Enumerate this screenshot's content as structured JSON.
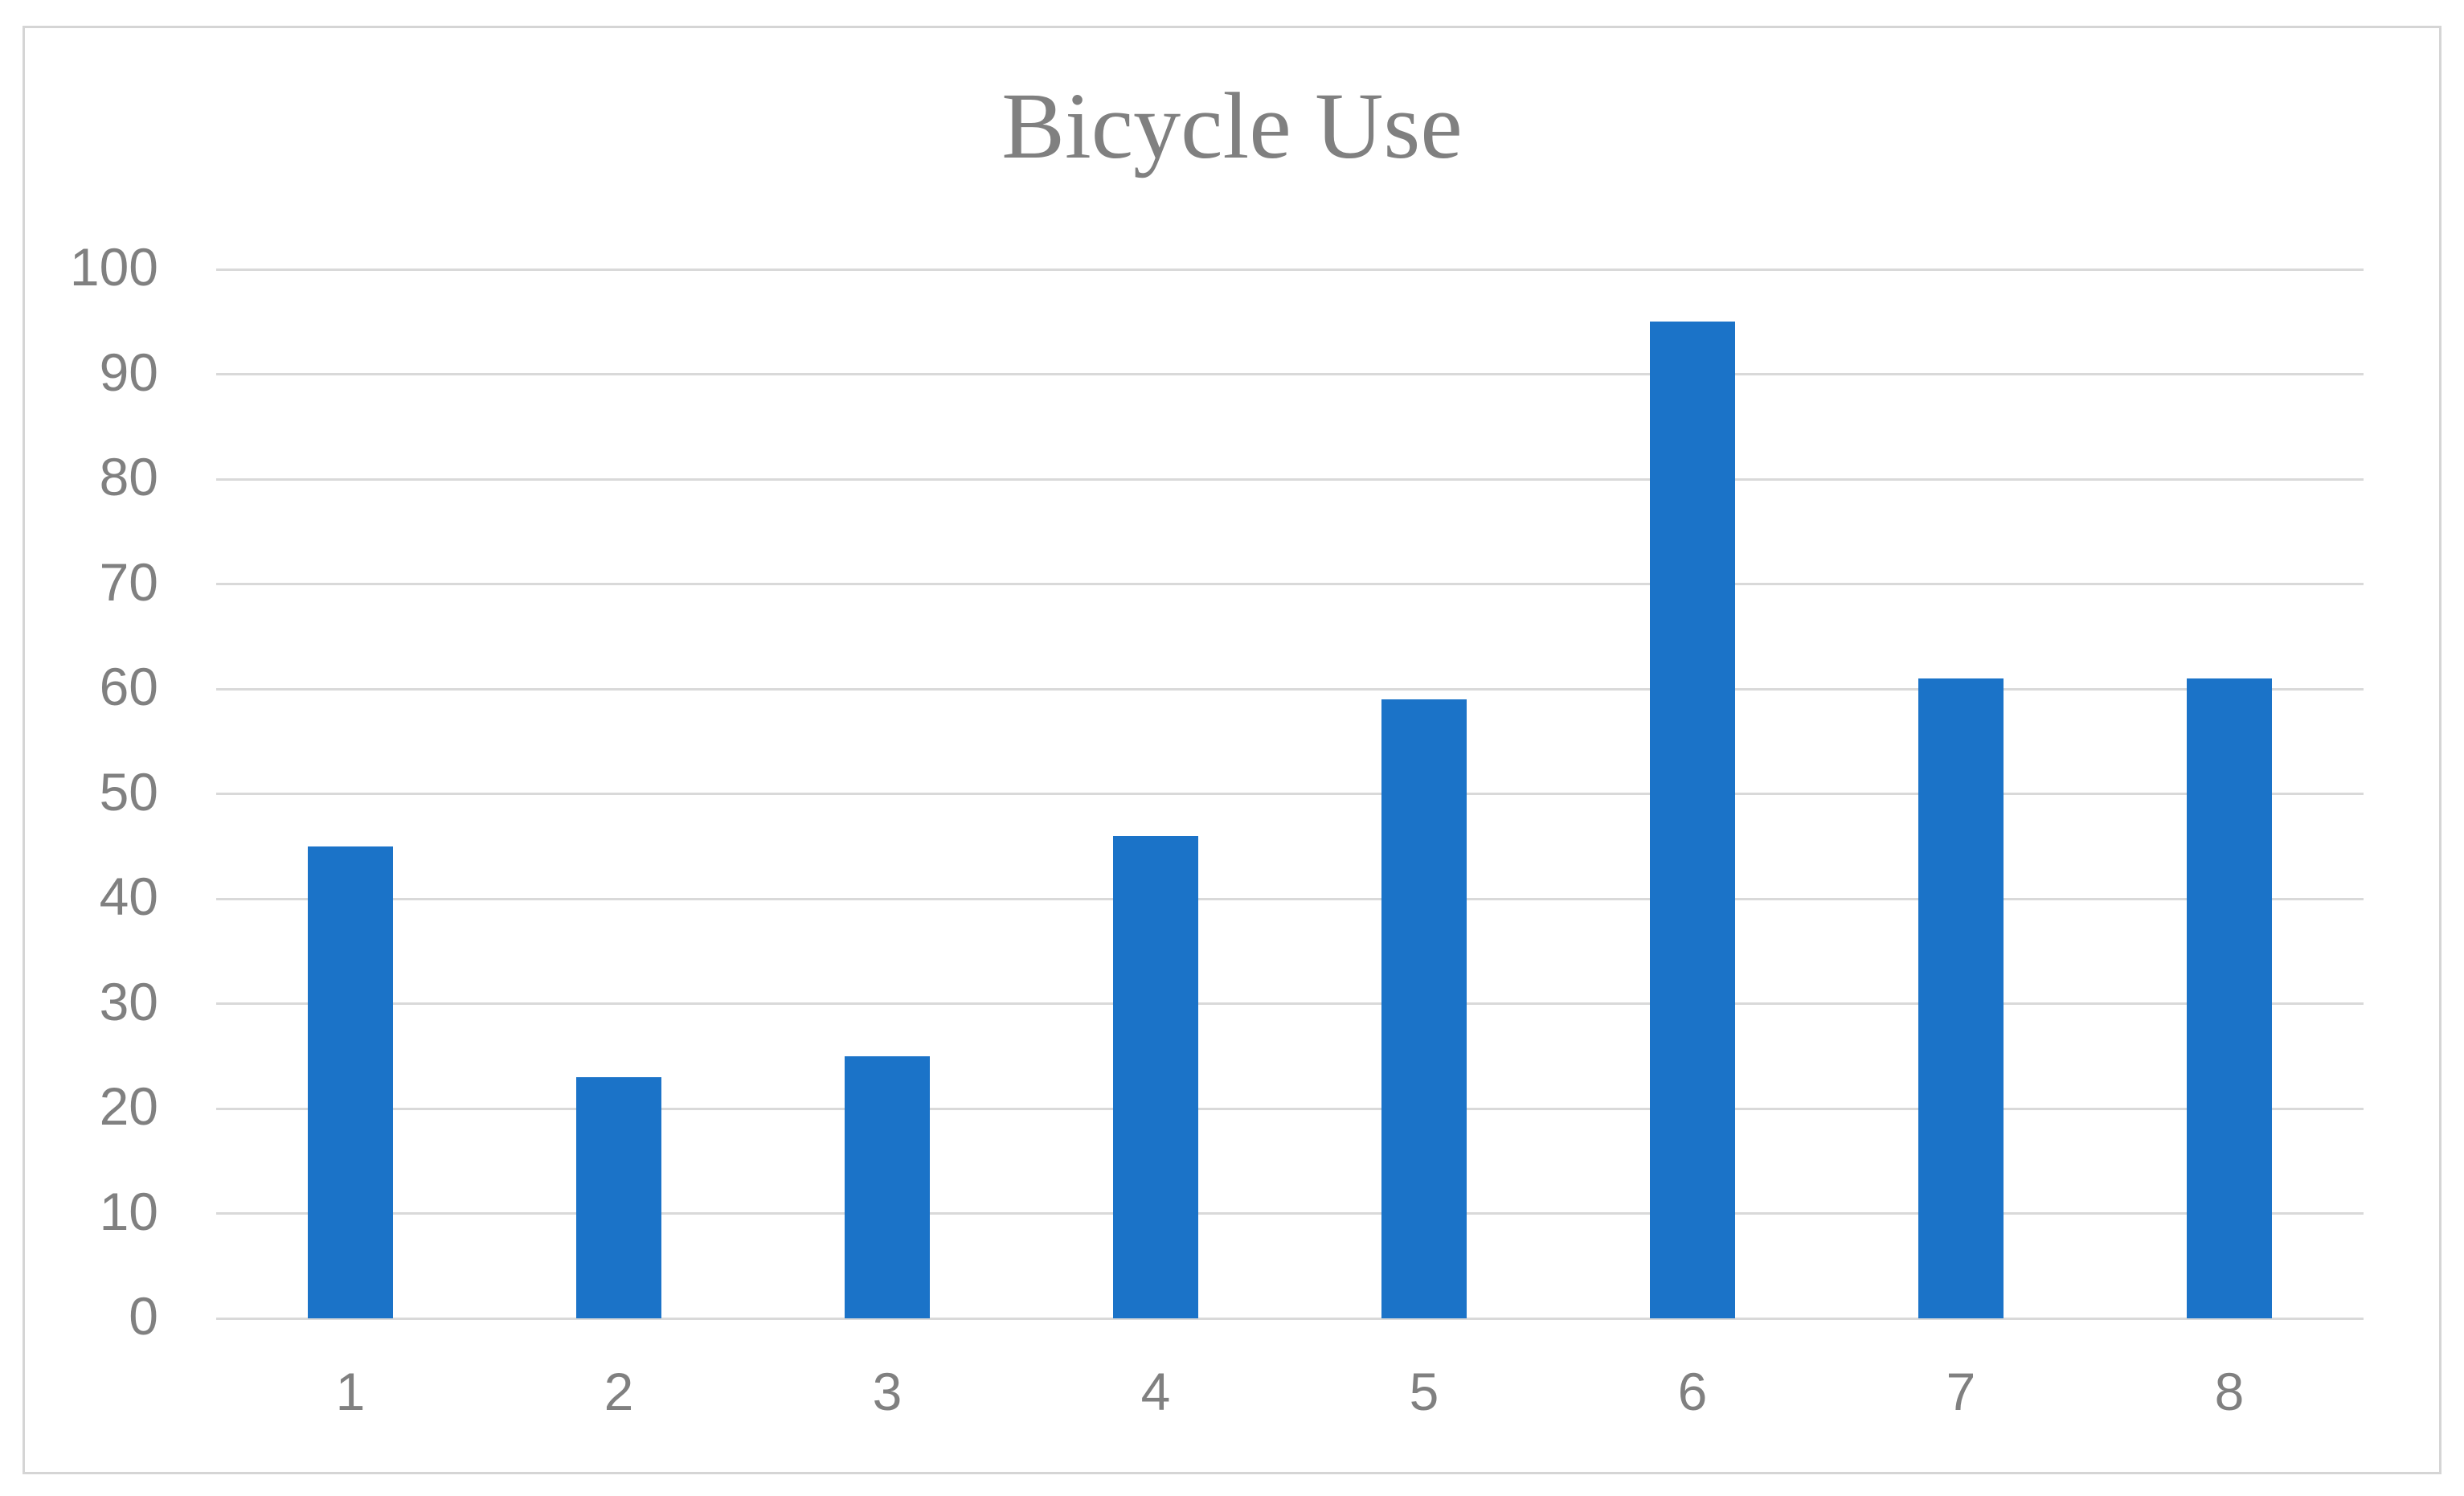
{
  "window": {
    "background": "#FFFFFF",
    "border_color": "#D5D5D5"
  },
  "chart_data": {
    "type": "bar",
    "title": "Bicycle Use",
    "categories": [
      "1",
      "2",
      "3",
      "4",
      "5",
      "6",
      "7",
      "8"
    ],
    "values": [
      45,
      23,
      25,
      46,
      59,
      95,
      61,
      61
    ],
    "xlabel": "",
    "ylabel": "",
    "ylim": [
      0,
      100
    ],
    "ytick_step": 10,
    "yticks": [
      0,
      10,
      20,
      30,
      40,
      50,
      60,
      70,
      80,
      90,
      100
    ],
    "grid": true,
    "legend": false,
    "bar_color": "#1B73C8",
    "gridline_color": "#D9D9D9",
    "axis_line_color": "#D9D9D9",
    "tick_label_color": "#808080",
    "title_color": "#808080"
  }
}
